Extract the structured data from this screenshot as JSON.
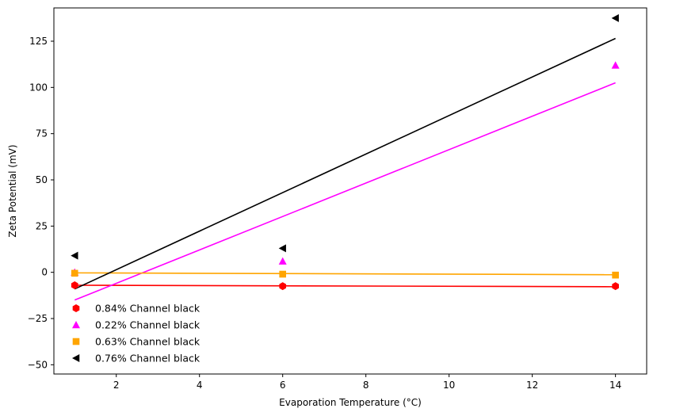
{
  "chart_data": {
    "type": "scatter",
    "title": "",
    "xlabel": "Evaporation Temperature (°C)",
    "ylabel": "Zeta Potential (mV)",
    "xlim": [
      0.5,
      14.75
    ],
    "ylim": [
      -55,
      143
    ],
    "xticks": [
      2,
      4,
      6,
      8,
      10,
      12,
      14
    ],
    "yticks": [
      -50,
      -25,
      0,
      25,
      50,
      75,
      100,
      125
    ],
    "grid": false,
    "legend_position": "lower-left",
    "series": [
      {
        "name": "0.84% Channel black",
        "color": "#ff0000",
        "marker": "hexagon",
        "x": [
          1,
          6,
          14
        ],
        "y": [
          -7,
          -7.5,
          -7.5
        ],
        "fit": [
          [
            1,
            -7
          ],
          [
            14,
            -7.8
          ]
        ]
      },
      {
        "name": "0.22% Channel black",
        "color": "#ff00ff",
        "marker": "triangle-up",
        "x": [
          1,
          6,
          14
        ],
        "y": [
          0,
          6,
          112
        ],
        "fit": [
          [
            1,
            -15
          ],
          [
            14,
            102.5
          ]
        ]
      },
      {
        "name": "0.63% Channel black",
        "color": "#ffa500",
        "marker": "square",
        "x": [
          1,
          6,
          14
        ],
        "y": [
          -0.5,
          -1,
          -1.5
        ],
        "fit": [
          [
            1,
            -0.3
          ],
          [
            14,
            -1.3
          ]
        ]
      },
      {
        "name": "0.76% Channel black",
        "color": "#000000",
        "marker": "triangle-left",
        "x": [
          1,
          6,
          14
        ],
        "y": [
          9,
          13,
          137.5
        ],
        "fit": [
          [
            1,
            -9
          ],
          [
            14,
            126.5
          ]
        ]
      }
    ]
  }
}
